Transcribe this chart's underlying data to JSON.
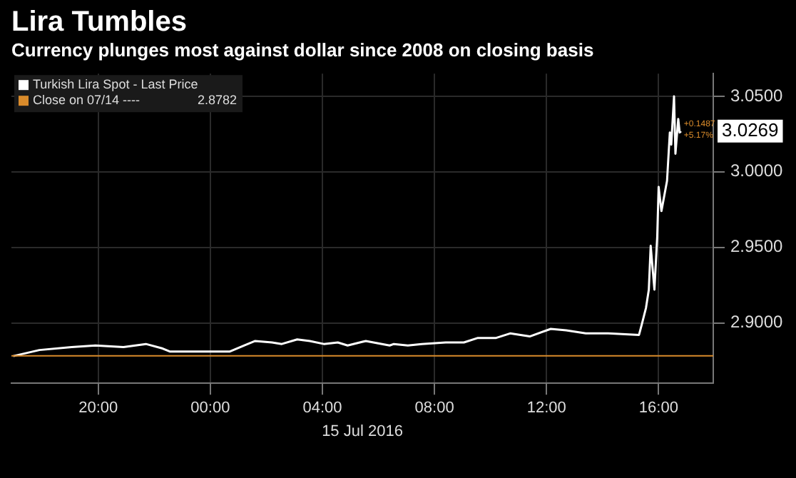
{
  "chart_data": {
    "type": "line",
    "title": "Lira Tumbles",
    "subtitle": "Currency plunges most against dollar since 2008 on closing basis",
    "xlabel": "15 Jul 2016",
    "xlim": [
      "2016-07-14T16:54",
      "2016-07-15T17:57"
    ],
    "xticks": [
      {
        "value": "2016-07-14T20:00",
        "label": "20:00"
      },
      {
        "value": "2016-07-15T00:00",
        "label": "00:00"
      },
      {
        "value": "2016-07-15T04:00",
        "label": "04:00"
      },
      {
        "value": "2016-07-15T08:00",
        "label": "08:00"
      },
      {
        "value": "2016-07-15T12:00",
        "label": "12:00"
      },
      {
        "value": "2016-07-15T16:00",
        "label": "16:00"
      }
    ],
    "ylim": [
      2.86,
      3.065
    ],
    "yticks": [
      {
        "value": 2.9,
        "label": "2.9000"
      },
      {
        "value": 2.95,
        "label": "2.9500"
      },
      {
        "value": 3.0,
        "label": "3.0000"
      },
      {
        "value": 3.05,
        "label": "3.0500"
      }
    ],
    "grid": true,
    "legend": "top left",
    "marker": "none",
    "line_style": "solid",
    "series": [
      {
        "name": "Turkish Lira Spot - Last Price",
        "color": "#ffffff",
        "x": [
          "2016-07-14T16:58",
          "2016-07-14T17:54",
          "2016-07-14T19:03",
          "2016-07-14T19:54",
          "2016-07-14T20:54",
          "2016-07-14T21:42",
          "2016-07-14T22:18",
          "2016-07-14T22:33",
          "2016-07-14T23:33",
          "2016-07-15T00:42",
          "2016-07-15T01:12",
          "2016-07-15T01:36",
          "2016-07-15T02:12",
          "2016-07-15T02:33",
          "2016-07-15T03:06",
          "2016-07-15T03:33",
          "2016-07-15T04:03",
          "2016-07-15T04:33",
          "2016-07-15T04:54",
          "2016-07-15T05:33",
          "2016-07-15T06:24",
          "2016-07-15T06:33",
          "2016-07-15T07:03",
          "2016-07-15T07:33",
          "2016-07-15T08:24",
          "2016-07-15T09:03",
          "2016-07-15T09:33",
          "2016-07-15T10:12",
          "2016-07-15T10:42",
          "2016-07-15T11:24",
          "2016-07-15T12:09",
          "2016-07-15T12:42",
          "2016-07-15T13:24",
          "2016-07-15T14:12",
          "2016-07-15T15:18",
          "2016-07-15T15:24",
          "2016-07-15T15:33",
          "2016-07-15T15:39",
          "2016-07-15T15:43",
          "2016-07-15T15:51",
          "2016-07-15T15:57",
          "2016-07-15T16:00",
          "2016-07-15T16:06",
          "2016-07-15T16:18",
          "2016-07-15T16:24",
          "2016-07-15T16:27",
          "2016-07-15T16:33",
          "2016-07-15T16:36",
          "2016-07-15T16:42",
          "2016-07-15T16:45",
          "2016-07-15T16:48"
        ],
        "values": [
          2.878,
          2.882,
          2.884,
          2.885,
          2.884,
          2.886,
          2.883,
          2.881,
          2.881,
          2.881,
          2.885,
          2.888,
          2.887,
          2.886,
          2.889,
          2.888,
          2.886,
          2.887,
          2.885,
          2.888,
          2.885,
          2.886,
          2.885,
          2.886,
          2.887,
          2.887,
          2.89,
          2.89,
          2.893,
          2.891,
          2.896,
          2.895,
          2.893,
          2.893,
          2.892,
          2.899,
          2.91,
          2.922,
          2.951,
          2.922,
          2.957,
          2.99,
          2.974,
          2.994,
          3.026,
          3.018,
          3.05,
          3.012,
          3.035,
          3.026,
          3.0269
        ]
      }
    ],
    "ref_lines": [
      {
        "axis": "y",
        "value": 2.8782,
        "label": "Close on 07/14 ----",
        "color": "#d98b2b"
      }
    ],
    "annotations": [
      "2.8782",
      "3.0269",
      {
        "text": "+0.1487",
        "x": "2016-07-15T16:48",
        "y": 3.0269
      },
      {
        "text": "+5.17%",
        "x": "2016-07-15T16:48",
        "y": 3.0269
      }
    ]
  }
}
